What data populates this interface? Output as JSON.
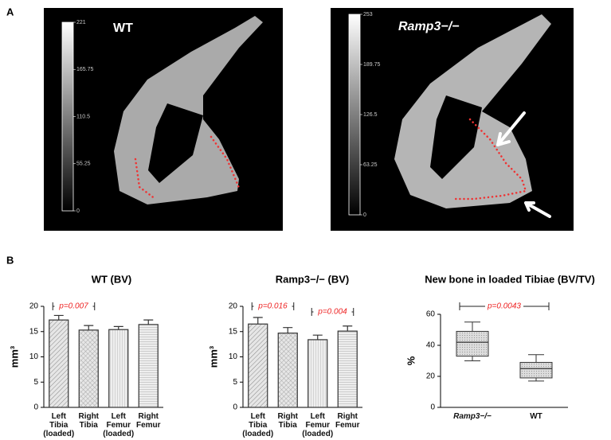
{
  "panel_labels": [
    "A",
    "B"
  ],
  "panel_a": [
    {
      "title": "WT",
      "colorbar_lim": [
        0,
        221
      ],
      "colorbar_ticks": [
        221,
        165.75,
        110.5,
        55.25,
        0
      ]
    },
    {
      "title": "Ramp3−/−",
      "colorbar_lim": [
        0,
        253
      ],
      "colorbar_ticks": [
        253,
        189.75,
        126.5,
        63.25,
        0
      ]
    }
  ],
  "chart_data": [
    {
      "type": "bar",
      "title": "WT (BV)",
      "ylabel": "mm³",
      "categories": [
        "Left\nTibia\n(loaded)",
        "Right\nTibia",
        "Left\nFemur\n(loaded)",
        "Right\nFemur"
      ],
      "values": [
        17.3,
        15.3,
        15.4,
        16.4
      ],
      "errors": [
        0.9,
        0.9,
        0.6,
        0.9
      ],
      "ylim": [
        0,
        20
      ],
      "yticks": [
        0,
        5,
        10,
        15,
        20
      ],
      "annotations": [
        "p=0.007"
      ]
    },
    {
      "type": "bar",
      "title": "Ramp3−/− (BV)",
      "ylabel": "mm³",
      "categories": [
        "Left\nTibia\n(loaded)",
        "Right\nTibia",
        "Left\nFemur\n(loaded)",
        "Right\nFemur"
      ],
      "values": [
        16.5,
        14.7,
        13.4,
        15.1
      ],
      "errors": [
        1.3,
        1.1,
        0.9,
        1.0
      ],
      "ylim": [
        0,
        20
      ],
      "yticks": [
        0,
        5,
        10,
        15,
        20
      ],
      "annotations": [
        "p=0.016",
        "p=0.004"
      ]
    },
    {
      "type": "box",
      "title": "New bone in loaded Tibiae (BV/TV)",
      "ylabel": "%",
      "categories": [
        "Ramp3−/−",
        "WT"
      ],
      "series": [
        {
          "min": 30,
          "q1": 33,
          "median": 42,
          "q3": 49,
          "max": 55
        },
        {
          "min": 17,
          "q1": 19,
          "median": 25,
          "q3": 29,
          "max": 34
        }
      ],
      "ylim": [
        0,
        60
      ],
      "yticks": [
        0,
        20,
        40,
        60
      ],
      "annotations": [
        "p=0.0043"
      ]
    }
  ]
}
